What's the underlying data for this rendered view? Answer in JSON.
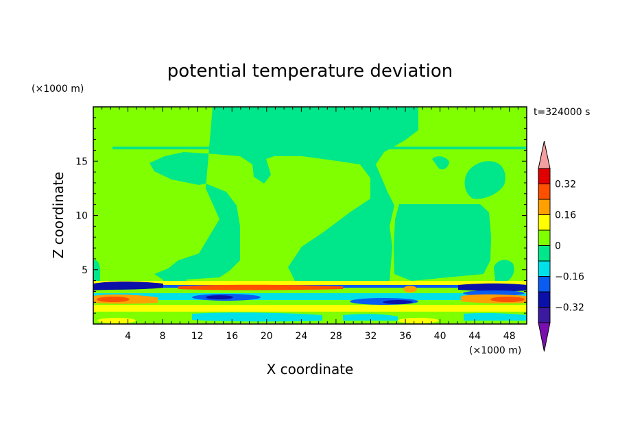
{
  "chart_data": {
    "type": "heatmap",
    "title": "potential temperature deviation",
    "xlabel": "X coordinate",
    "ylabel": "Z coordinate",
    "x_unit": "(×1000 m)",
    "y_unit": "(×1000 m)",
    "time_label": "t=324000 s",
    "xlim": [
      0,
      50
    ],
    "ylim": [
      0,
      20
    ],
    "x_ticks": [
      "4",
      "8",
      "12",
      "16",
      "20",
      "24",
      "28",
      "32",
      "36",
      "40",
      "44",
      "48"
    ],
    "y_ticks": [
      "5",
      "10",
      "15"
    ],
    "colorbar": {
      "levels": [
        -0.4,
        -0.32,
        -0.24,
        -0.16,
        -0.08,
        0,
        0.08,
        0.16,
        0.24,
        0.32,
        0.4
      ],
      "labels": [
        "0.32",
        "0.16",
        "0",
        "−0.16",
        "−0.32"
      ],
      "label_values": [
        0.32,
        0.16,
        0,
        -0.16,
        -0.32
      ],
      "colors": [
        "#7a0fb0",
        "#3c1aa0",
        "#0a10a8",
        "#0a5cf0",
        "#00e0e8",
        "#00e68a",
        "#80ff00",
        "#ffff00",
        "#ffa000",
        "#ff5000",
        "#e00000",
        "#f4a0a0"
      ]
    },
    "background_color": "#80ff00",
    "description_regions": {
      "upper_dominant": "slightly positive (0 to 0.08)",
      "upper_patches": "slightly negative (-0.08 to 0)",
      "lower_layer_z_range_km": [
        0,
        3.8
      ]
    }
  }
}
